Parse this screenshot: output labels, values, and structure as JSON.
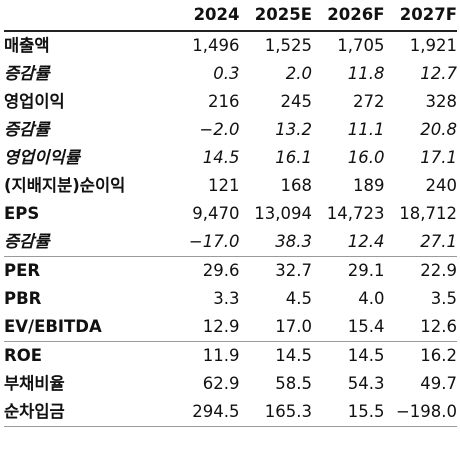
{
  "table": {
    "header": [
      "",
      "2024",
      "2025E",
      "2026F",
      "2027F"
    ],
    "rows": [
      {
        "label": "매출액",
        "values": [
          "1,496",
          "1,525",
          "1,705",
          "1,921"
        ],
        "italic": false,
        "separator_above": false
      },
      {
        "label": "증감률",
        "values": [
          "0.3",
          "2.0",
          "11.8",
          "12.7"
        ],
        "italic": true,
        "separator_above": false
      },
      {
        "label": "영업이익",
        "values": [
          "216",
          "245",
          "272",
          "328"
        ],
        "italic": false,
        "separator_above": false
      },
      {
        "label": "증감률",
        "values": [
          "−2.0",
          "13.2",
          "11.1",
          "20.8"
        ],
        "italic": true,
        "separator_above": false
      },
      {
        "label": "영업이익률",
        "values": [
          "14.5",
          "16.1",
          "16.0",
          "17.1"
        ],
        "italic": true,
        "separator_above": false
      },
      {
        "label": "(지배지분)순이익",
        "values": [
          "121",
          "168",
          "189",
          "240"
        ],
        "italic": false,
        "separator_above": false
      },
      {
        "label": "EPS",
        "values": [
          "9,470",
          "13,094",
          "14,723",
          "18,712"
        ],
        "italic": false,
        "separator_above": false
      },
      {
        "label": "증감률",
        "values": [
          "−17.0",
          "38.3",
          "12.4",
          "27.1"
        ],
        "italic": true,
        "separator_above": false
      },
      {
        "label": "PER",
        "values": [
          "29.6",
          "32.7",
          "29.1",
          "22.9"
        ],
        "italic": false,
        "separator_above": true
      },
      {
        "label": "PBR",
        "values": [
          "3.3",
          "4.5",
          "4.0",
          "3.5"
        ],
        "italic": false,
        "separator_above": false
      },
      {
        "label": "EV/EBITDA",
        "values": [
          "12.9",
          "17.0",
          "15.4",
          "12.6"
        ],
        "italic": false,
        "separator_above": false
      },
      {
        "label": "ROE",
        "values": [
          "11.9",
          "14.5",
          "14.5",
          "16.2"
        ],
        "italic": false,
        "separator_above": true
      },
      {
        "label": "부채비율",
        "values": [
          "62.9",
          "58.5",
          "54.3",
          "49.7"
        ],
        "italic": false,
        "separator_above": false
      },
      {
        "label": "순차입금",
        "values": [
          "294.5",
          "165.3",
          "15.5",
          "−198.0"
        ],
        "italic": false,
        "separator_above": false
      }
    ]
  }
}
